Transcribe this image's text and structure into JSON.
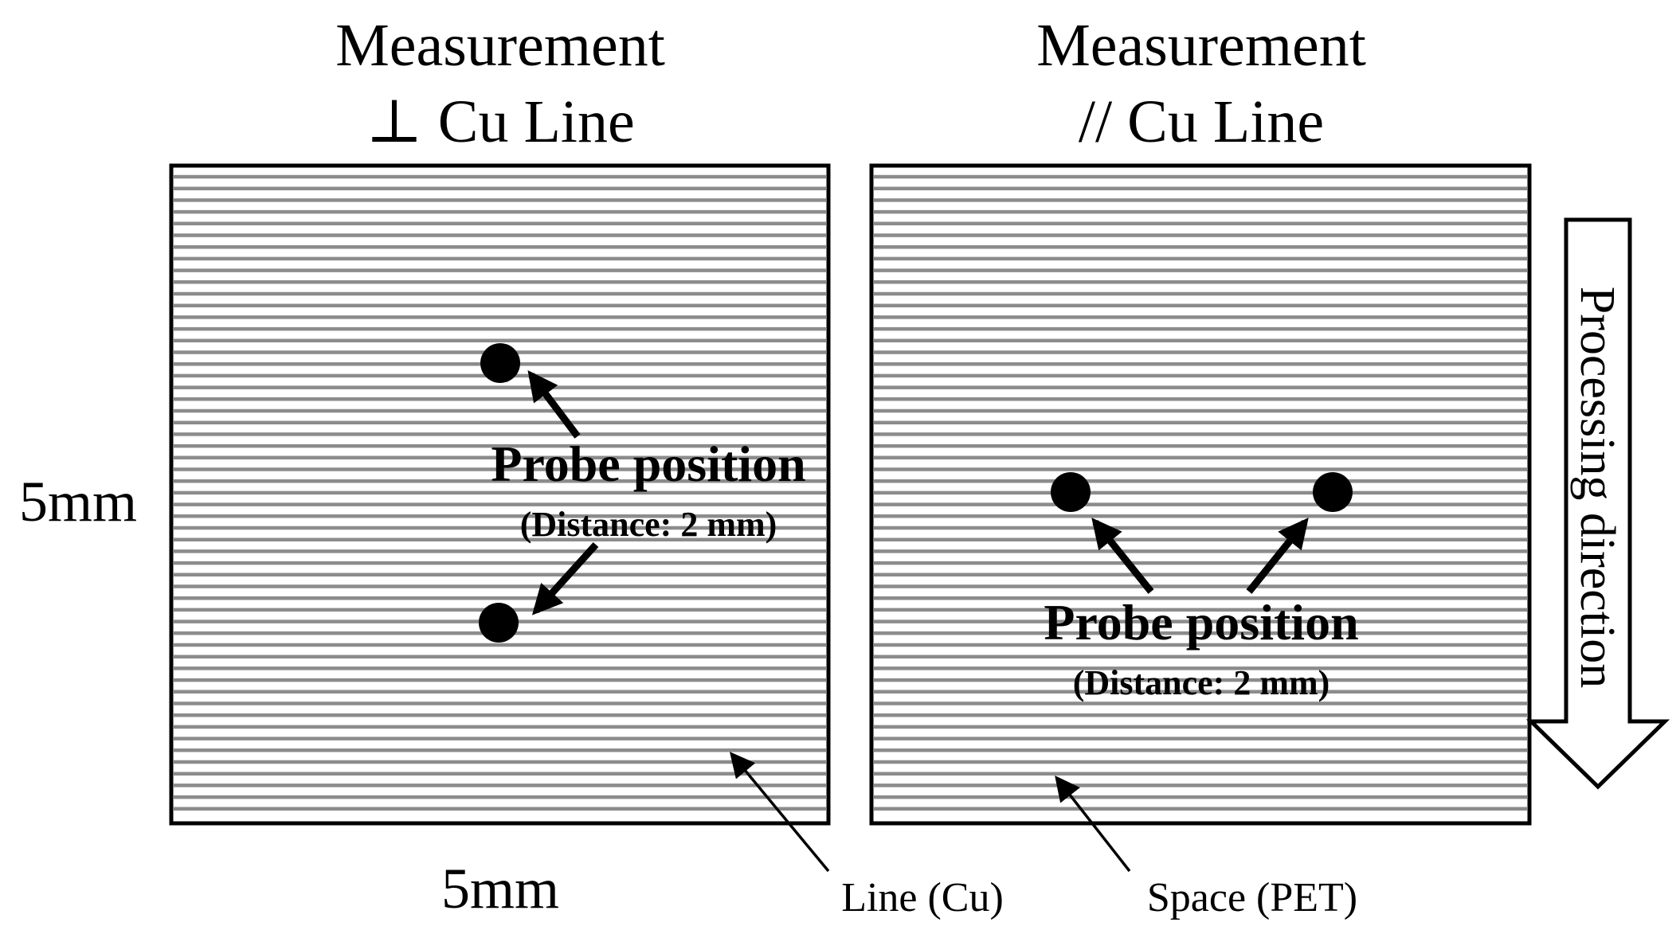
{
  "left_panel": {
    "title_line1": "Measurement",
    "title_line2": "⊥ Cu Line",
    "probe_label": "Probe position",
    "probe_distance": "(Distance: 2 mm)"
  },
  "right_panel": {
    "title_line1": "Measurement",
    "title_line2": "// Cu Line",
    "probe_label": "Probe position",
    "probe_distance": "(Distance: 2 mm)"
  },
  "dimensions": {
    "height_label": "5mm",
    "width_label": "5mm"
  },
  "callouts": {
    "line_label": "Line (Cu)",
    "space_label": "Space (PET)"
  },
  "processing": {
    "label": "Processing direction"
  },
  "colors": {
    "line_cu": "#8c8c8c",
    "space_pet": "#ffffff",
    "ink": "#000000"
  }
}
